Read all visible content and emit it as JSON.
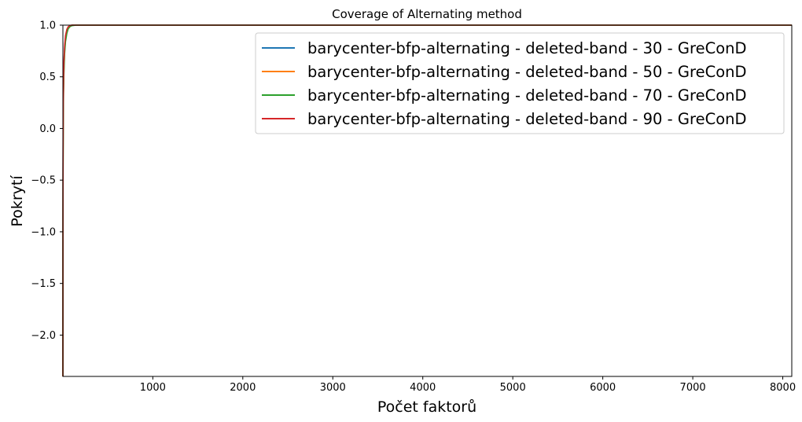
{
  "chart_data": {
    "type": "line",
    "title": "Coverage of Alternating method",
    "xlabel": "Počet faktorů",
    "ylabel": "Pokrytí",
    "xlim": [
      1,
      8100
    ],
    "ylim": [
      -2.4,
      1.0
    ],
    "xticks": [
      1000,
      2000,
      3000,
      4000,
      5000,
      6000,
      7000,
      8000
    ],
    "yticks": [
      -2.0,
      -1.5,
      -1.0,
      -0.5,
      0.0,
      0.5,
      1.0
    ],
    "ytick_labels": [
      "−2.0",
      "−1.5",
      "−1.0",
      "−0.5",
      "0.0",
      "0.5",
      "1.0"
    ],
    "grid": false,
    "legend_position": "top-right",
    "series": [
      {
        "name": "barycenter-bfp-alternating - deleted-band - 30 - GreConD",
        "color": "#1f77b4",
        "x": [
          1,
          2,
          3,
          5,
          8,
          12,
          20,
          30,
          45,
          60,
          80,
          100,
          150,
          8100
        ],
        "y": [
          -2.4,
          -0.9,
          -0.3,
          0.15,
          0.42,
          0.6,
          0.78,
          0.88,
          0.95,
          0.98,
          0.99,
          1.0,
          1.0,
          1.0
        ]
      },
      {
        "name": "barycenter-bfp-alternating - deleted-band - 50 - GreConD",
        "color": "#ff7f0e",
        "x": [
          1,
          2,
          3,
          5,
          8,
          12,
          20,
          30,
          45,
          60,
          80,
          100,
          150,
          8100
        ],
        "y": [
          -2.4,
          -1.0,
          -0.4,
          0.1,
          0.38,
          0.56,
          0.75,
          0.86,
          0.94,
          0.975,
          0.99,
          1.0,
          1.0,
          1.0
        ]
      },
      {
        "name": "barycenter-bfp-alternating - deleted-band - 70 - GreConD",
        "color": "#2ca02c",
        "x": [
          1,
          2,
          3,
          5,
          8,
          12,
          20,
          30,
          45,
          60,
          80,
          100,
          150,
          8100
        ],
        "y": [
          -2.4,
          -1.1,
          -0.5,
          0.05,
          0.33,
          0.52,
          0.72,
          0.84,
          0.92,
          0.965,
          0.985,
          0.995,
          1.0,
          1.0
        ]
      },
      {
        "name": "barycenter-bfp-alternating - deleted-band - 90 - GreConD",
        "color": "#d62728",
        "x": [
          1,
          2,
          3,
          5,
          8,
          12,
          20,
          30,
          45,
          60,
          80,
          100,
          150,
          8100
        ],
        "y": [
          -2.4,
          -0.8,
          -0.2,
          0.2,
          0.45,
          0.63,
          0.8,
          0.9,
          0.96,
          0.985,
          0.995,
          1.0,
          1.0,
          1.0
        ]
      }
    ]
  }
}
